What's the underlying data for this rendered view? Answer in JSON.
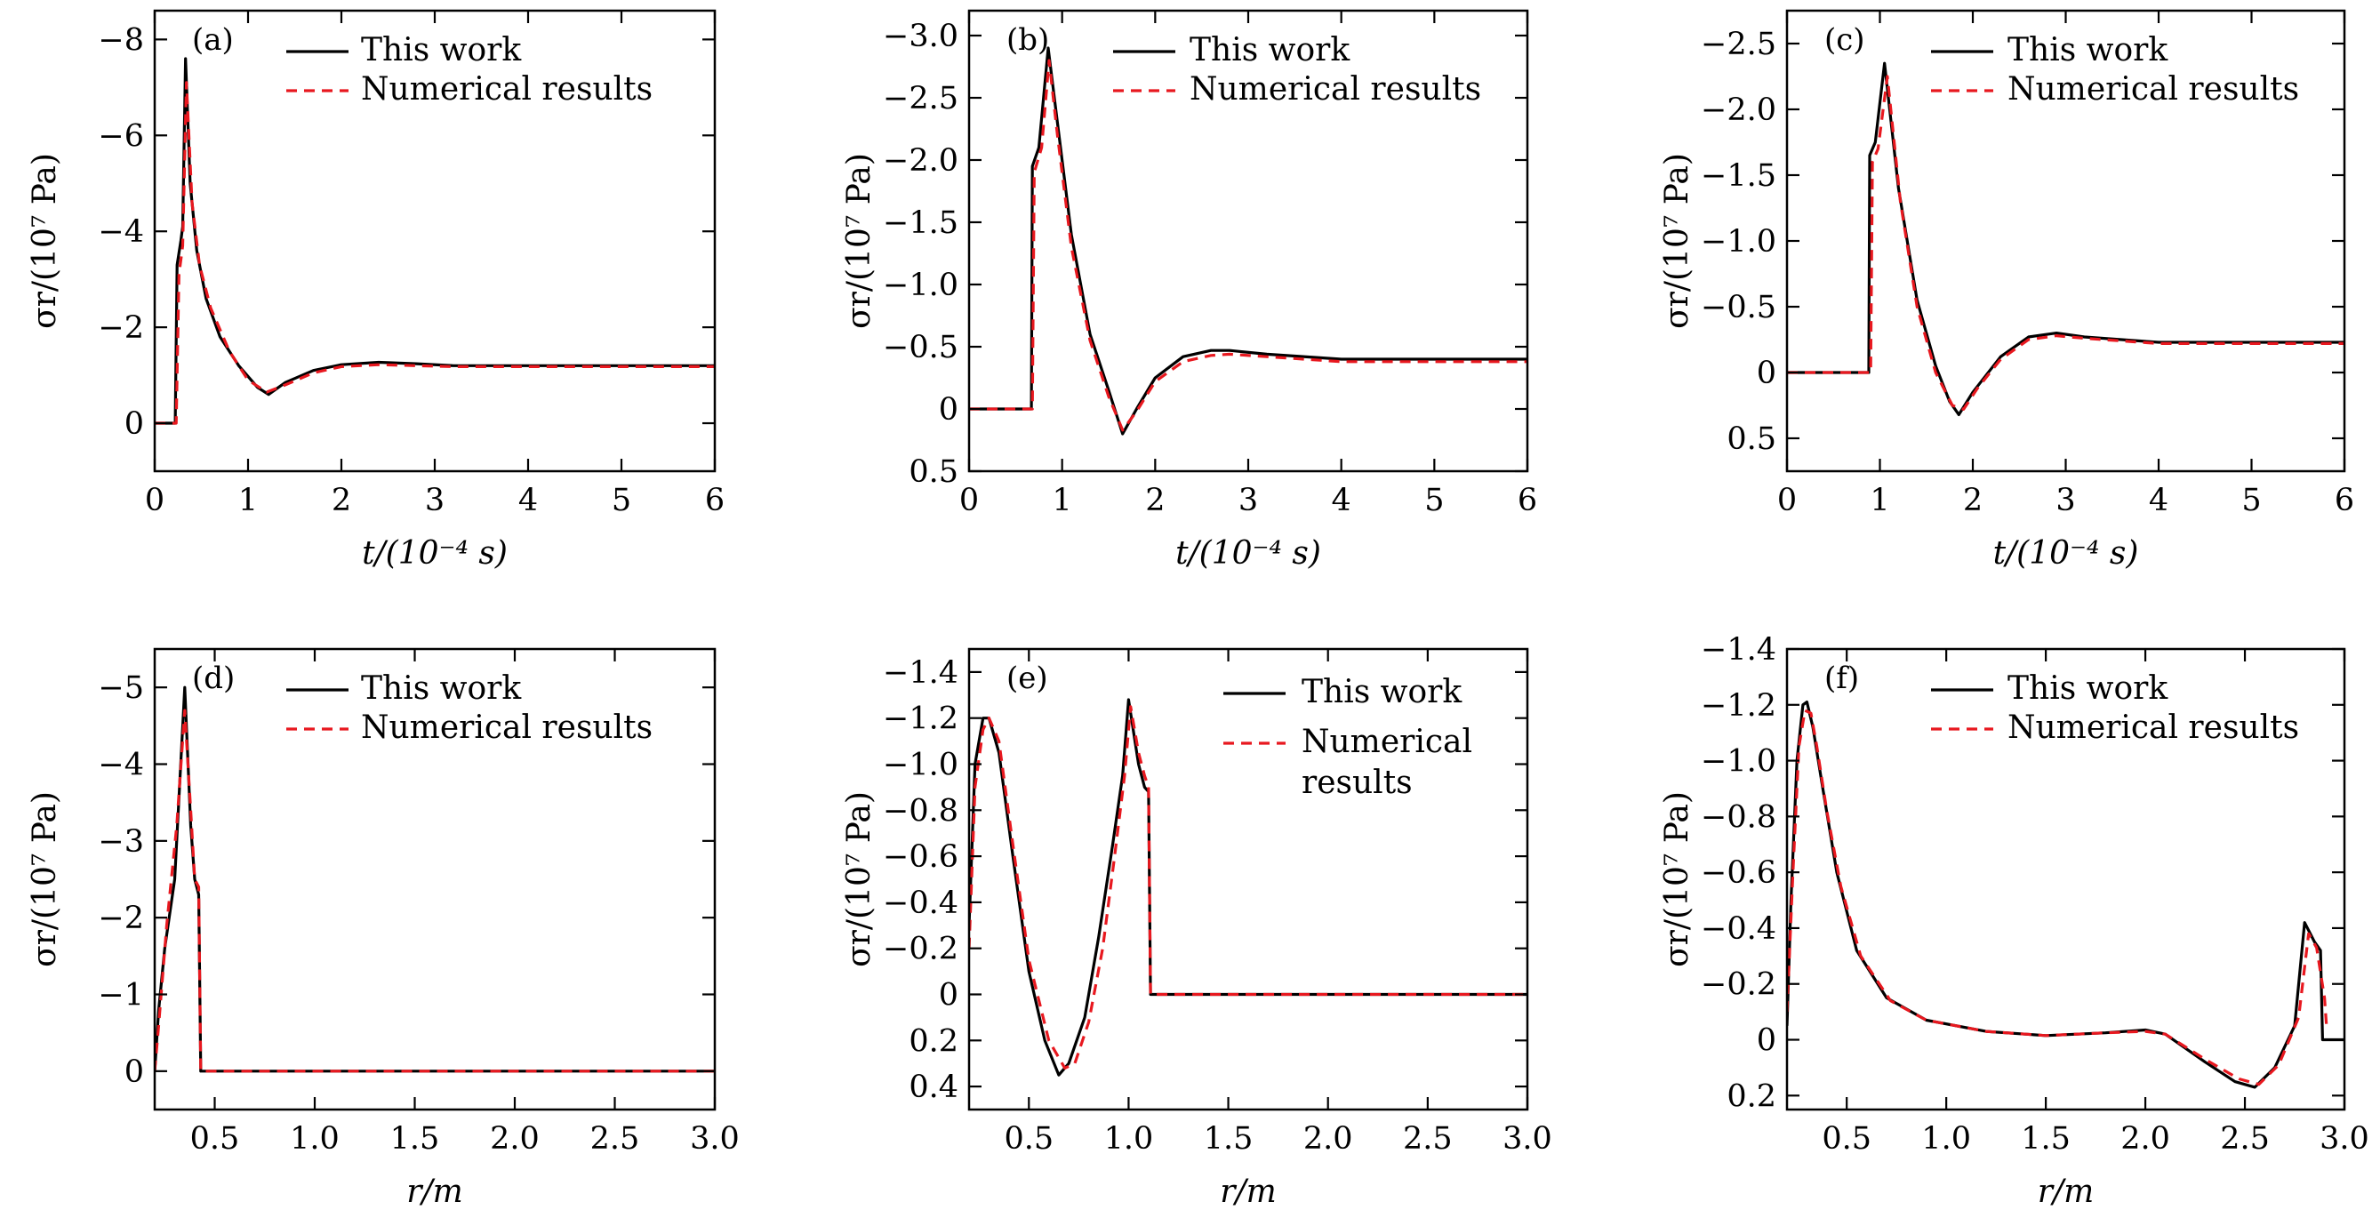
{
  "figure": {
    "colors": {
      "this_work": "#000000",
      "numerical": "#e8181f",
      "frame": "#000000",
      "background": "#ffffff"
    },
    "legend": {
      "series_1": "This work",
      "series_2": "Numerical results"
    }
  },
  "chart_data": [
    {
      "panel": "(a)",
      "type": "line",
      "xlabel": "t/(10⁻⁴ s)",
      "ylabel": "σr/(10⁷ Pa)",
      "xlim": [
        0,
        6
      ],
      "ylim": [
        1,
        -8.6
      ],
      "xticks": [
        0,
        1,
        2,
        3,
        4,
        5,
        6
      ],
      "xtick_labels": [
        "0",
        "1",
        "2",
        "3",
        "4",
        "5",
        "6"
      ],
      "yticks": [
        0,
        -2,
        -4,
        -6,
        -8
      ],
      "ytick_labels": [
        "0",
        "−2",
        "−4",
        "−6",
        "−8"
      ],
      "legend_position": "top-right",
      "series": [
        {
          "name": "This work",
          "style": "solid",
          "x": [
            0,
            0.22,
            0.24,
            0.28,
            0.3,
            0.33,
            0.38,
            0.45,
            0.55,
            0.7,
            0.9,
            1.1,
            1.22,
            1.4,
            1.7,
            2.0,
            2.4,
            2.8,
            3.2,
            4,
            5,
            6
          ],
          "y": [
            0,
            0,
            -3.3,
            -3.8,
            -4.1,
            -7.6,
            -5.0,
            -3.6,
            -2.6,
            -1.8,
            -1.2,
            -0.75,
            -0.6,
            -0.85,
            -1.1,
            -1.22,
            -1.27,
            -1.24,
            -1.2,
            -1.2,
            -1.2,
            -1.2
          ]
        },
        {
          "name": "Numerical results",
          "style": "dashed",
          "x": [
            0,
            0.23,
            0.26,
            0.3,
            0.34,
            0.4,
            0.48,
            0.6,
            0.8,
            1.0,
            1.2,
            1.4,
            1.7,
            2.0,
            2.4,
            2.8,
            3.2,
            4,
            5,
            6
          ],
          "y": [
            0,
            0,
            -3.1,
            -3.7,
            -7.1,
            -4.6,
            -3.3,
            -2.4,
            -1.5,
            -0.9,
            -0.65,
            -0.8,
            -1.05,
            -1.18,
            -1.22,
            -1.2,
            -1.18,
            -1.18,
            -1.18,
            -1.18
          ]
        }
      ]
    },
    {
      "panel": "(b)",
      "type": "line",
      "xlabel": "t/(10⁻⁴ s)",
      "ylabel": "σr/(10⁷ Pa)",
      "xlim": [
        0,
        6
      ],
      "ylim": [
        0.5,
        -3.2
      ],
      "xticks": [
        0,
        1,
        2,
        3,
        4,
        5,
        6
      ],
      "xtick_labels": [
        "0",
        "1",
        "2",
        "3",
        "4",
        "5",
        "6"
      ],
      "yticks": [
        0.5,
        0,
        -0.5,
        -1,
        -1.5,
        -2,
        -2.5,
        -3
      ],
      "ytick_labels": [
        "0.5",
        "0",
        "−0.5",
        "−1.0",
        "−1.5",
        "−2.0",
        "−2.5",
        "−3.0"
      ],
      "legend_position": "top-right",
      "series": [
        {
          "name": "This work",
          "style": "solid",
          "x": [
            0,
            0.67,
            0.68,
            0.75,
            0.85,
            0.95,
            1.1,
            1.3,
            1.5,
            1.65,
            1.8,
            2.0,
            2.3,
            2.6,
            2.8,
            3.2,
            4,
            5,
            6
          ],
          "y": [
            0,
            0,
            -1.95,
            -2.1,
            -2.9,
            -2.3,
            -1.4,
            -0.6,
            -0.15,
            0.2,
            0.0,
            -0.25,
            -0.42,
            -0.47,
            -0.47,
            -0.44,
            -0.4,
            -0.4,
            -0.4
          ]
        },
        {
          "name": "Numerical results",
          "style": "dashed",
          "x": [
            0,
            0.68,
            0.7,
            0.78,
            0.86,
            0.95,
            1.1,
            1.3,
            1.5,
            1.65,
            1.8,
            2.0,
            2.3,
            2.6,
            2.8,
            3.2,
            4,
            5,
            6
          ],
          "y": [
            0,
            0,
            -1.9,
            -2.1,
            -2.8,
            -2.2,
            -1.3,
            -0.55,
            -0.1,
            0.17,
            0.02,
            -0.22,
            -0.38,
            -0.43,
            -0.44,
            -0.42,
            -0.38,
            -0.38,
            -0.38
          ]
        }
      ]
    },
    {
      "panel": "(c)",
      "type": "line",
      "xlabel": "t/(10⁻⁴ s)",
      "ylabel": "σr/(10⁷ Pa)",
      "xlim": [
        0,
        6
      ],
      "ylim": [
        0.75,
        -2.75
      ],
      "xticks": [
        0,
        1,
        2,
        3,
        4,
        5,
        6
      ],
      "xtick_labels": [
        "0",
        "1",
        "2",
        "3",
        "4",
        "5",
        "6"
      ],
      "yticks": [
        0.5,
        0,
        -0.5,
        -1,
        -1.5,
        -2,
        -2.5
      ],
      "ytick_labels": [
        "0.5",
        "0",
        "−0.5",
        "−1.0",
        "−1.5",
        "−2.0",
        "−2.5"
      ],
      "legend_position": "top-right",
      "series": [
        {
          "name": "This work",
          "style": "solid",
          "x": [
            0,
            0.88,
            0.89,
            0.95,
            1.05,
            1.2,
            1.4,
            1.6,
            1.75,
            1.85,
            2.0,
            2.3,
            2.6,
            2.9,
            3.2,
            4,
            5,
            6
          ],
          "y": [
            0,
            0,
            -1.65,
            -1.75,
            -2.35,
            -1.4,
            -0.55,
            -0.05,
            0.22,
            0.32,
            0.15,
            -0.12,
            -0.27,
            -0.3,
            -0.27,
            -0.23,
            -0.23,
            -0.23
          ]
        },
        {
          "name": "Numerical results",
          "style": "dashed",
          "x": [
            0,
            0.9,
            0.92,
            0.98,
            1.08,
            1.22,
            1.4,
            1.6,
            1.78,
            1.9,
            2.05,
            2.3,
            2.6,
            2.9,
            3.2,
            4,
            5,
            6
          ],
          "y": [
            0,
            0,
            -1.6,
            -1.7,
            -2.25,
            -1.3,
            -0.5,
            0.0,
            0.25,
            0.28,
            0.12,
            -0.1,
            -0.25,
            -0.28,
            -0.26,
            -0.22,
            -0.22,
            -0.22
          ]
        }
      ]
    },
    {
      "panel": "(d)",
      "type": "line",
      "xlabel": "r/m",
      "ylabel": "σr/(10⁷ Pa)",
      "xlim": [
        0.2,
        3.0
      ],
      "ylim": [
        0.5,
        -5.5
      ],
      "xticks": [
        0.5,
        1,
        1.5,
        2,
        2.5,
        3
      ],
      "xtick_labels": [
        "0.5",
        "1.0",
        "1.5",
        "2.0",
        "2.5",
        "3.0"
      ],
      "yticks": [
        0,
        -1,
        -2,
        -3,
        -4,
        -5
      ],
      "ytick_labels": [
        "0",
        "−1",
        "−2",
        "−3",
        "−4",
        "−5"
      ],
      "legend_position": "top-right",
      "series": [
        {
          "name": "This work",
          "style": "solid",
          "x": [
            0.2,
            0.22,
            0.25,
            0.3,
            0.35,
            0.38,
            0.4,
            0.42,
            0.43,
            0.5,
            1,
            2,
            3
          ],
          "y": [
            0,
            -0.8,
            -1.6,
            -2.5,
            -5.0,
            -3.2,
            -2.5,
            -2.3,
            0,
            0,
            0,
            0,
            0
          ]
        },
        {
          "name": "Numerical results",
          "style": "dashed",
          "x": [
            0.2,
            0.22,
            0.26,
            0.31,
            0.35,
            0.38,
            0.4,
            0.42,
            0.43,
            0.5,
            1,
            2,
            3
          ],
          "y": [
            0,
            -0.6,
            -1.9,
            -3.2,
            -4.7,
            -3.4,
            -2.5,
            -2.4,
            0,
            0,
            0,
            0,
            0
          ]
        }
      ]
    },
    {
      "panel": "(e)",
      "type": "line",
      "xlabel": "r/m",
      "ylabel": "σr/(10⁷ Pa)",
      "xlim": [
        0.2,
        3.0
      ],
      "ylim": [
        0.5,
        -1.5
      ],
      "xticks": [
        0.5,
        1,
        1.5,
        2,
        2.5,
        3
      ],
      "xtick_labels": [
        "0.5",
        "1.0",
        "1.5",
        "2.0",
        "2.5",
        "3.0"
      ],
      "yticks": [
        0.4,
        0.2,
        0,
        -0.2,
        -0.4,
        -0.6,
        -0.8,
        -1,
        -1.2,
        -1.4
      ],
      "ytick_labels": [
        "0.4",
        "0.2",
        "0",
        "−0.2",
        "−0.4",
        "−0.6",
        "−0.8",
        "−1.0",
        "−1.2",
        "−1.4"
      ],
      "legend_position": "top-right",
      "series": [
        {
          "name": "This work",
          "style": "solid",
          "x": [
            0.2,
            0.23,
            0.27,
            0.3,
            0.35,
            0.42,
            0.5,
            0.58,
            0.65,
            0.7,
            0.78,
            0.85,
            0.92,
            0.97,
            1.0,
            1.05,
            1.08,
            1.1,
            1.11,
            1.3,
            2,
            3
          ],
          "y": [
            -0.3,
            -1.0,
            -1.2,
            -1.2,
            -1.05,
            -0.6,
            -0.1,
            0.2,
            0.35,
            0.3,
            0.1,
            -0.25,
            -0.65,
            -0.95,
            -1.28,
            -1.0,
            -0.9,
            -0.88,
            0,
            0,
            0,
            0
          ]
        },
        {
          "name": "Numerical results",
          "style": "dashed",
          "x": [
            0.2,
            0.23,
            0.27,
            0.3,
            0.35,
            0.42,
            0.5,
            0.6,
            0.68,
            0.73,
            0.8,
            0.87,
            0.93,
            0.98,
            1.01,
            1.05,
            1.08,
            1.1,
            1.11,
            1.3,
            2,
            3
          ],
          "y": [
            -0.2,
            -0.9,
            -1.15,
            -1.2,
            -1.1,
            -0.65,
            -0.15,
            0.2,
            0.32,
            0.3,
            0.12,
            -0.2,
            -0.6,
            -0.95,
            -1.25,
            -1.05,
            -0.95,
            -0.9,
            0,
            0,
            0,
            0
          ]
        }
      ]
    },
    {
      "panel": "(f)",
      "type": "line",
      "xlabel": "r/m",
      "ylabel": "σr/(10⁷ Pa)",
      "xlim": [
        0.2,
        3.0
      ],
      "ylim": [
        0.25,
        -1.4
      ],
      "xticks": [
        0.5,
        1,
        1.5,
        2,
        2.5,
        3
      ],
      "xtick_labels": [
        "0.5",
        "1.0",
        "1.5",
        "2.0",
        "2.5",
        "3.0"
      ],
      "yticks": [
        0.2,
        0,
        -0.2,
        -0.4,
        -0.6,
        -0.8,
        -1,
        -1.2,
        -1.4
      ],
      "ytick_labels": [
        "0.2",
        "0",
        "−0.2",
        "−0.4",
        "−0.6",
        "−0.8",
        "−1.0",
        "−1.2",
        "−1.4"
      ],
      "legend_position": "top-right",
      "series": [
        {
          "name": "This work",
          "style": "solid",
          "x": [
            0.2,
            0.22,
            0.25,
            0.28,
            0.3,
            0.33,
            0.38,
            0.45,
            0.55,
            0.7,
            0.9,
            1.2,
            1.5,
            1.8,
            2.0,
            2.1,
            2.3,
            2.45,
            2.55,
            2.65,
            2.75,
            2.8,
            2.85,
            2.88,
            2.89,
            3.0
          ],
          "y": [
            -0.05,
            -0.5,
            -1.0,
            -1.2,
            -1.21,
            -1.12,
            -0.9,
            -0.6,
            -0.32,
            -0.15,
            -0.07,
            -0.03,
            -0.015,
            -0.025,
            -0.035,
            -0.02,
            0.08,
            0.15,
            0.17,
            0.1,
            -0.05,
            -0.42,
            -0.35,
            -0.32,
            0,
            0
          ]
        },
        {
          "name": "Numerical results",
          "style": "dashed",
          "x": [
            0.2,
            0.23,
            0.26,
            0.29,
            0.32,
            0.35,
            0.4,
            0.47,
            0.57,
            0.72,
            0.9,
            1.2,
            1.5,
            1.8,
            2.0,
            2.1,
            2.3,
            2.47,
            2.57,
            2.67,
            2.77,
            2.82,
            2.86,
            2.9,
            2.91
          ],
          "y": [
            -0.1,
            -0.6,
            -1.05,
            -1.18,
            -1.17,
            -1.05,
            -0.82,
            -0.55,
            -0.3,
            -0.14,
            -0.07,
            -0.03,
            -0.015,
            -0.025,
            -0.03,
            -0.02,
            0.07,
            0.14,
            0.16,
            0.09,
            -0.08,
            -0.38,
            -0.33,
            -0.15,
            -0.05
          ]
        }
      ]
    }
  ]
}
